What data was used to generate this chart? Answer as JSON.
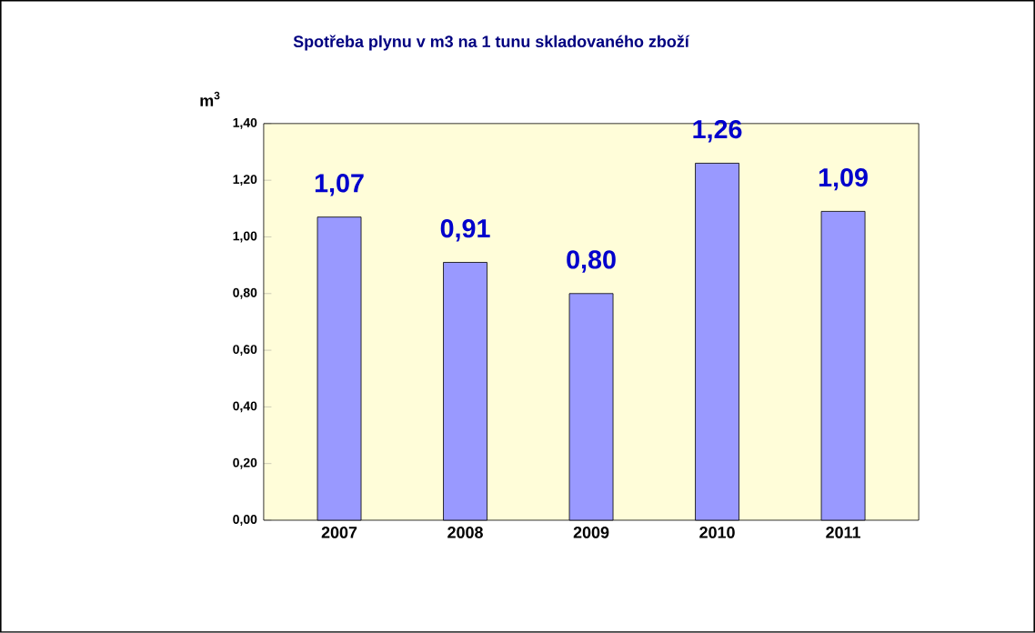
{
  "chart_data": {
    "type": "bar",
    "title": "Spotřeba plynu v m3 na 1 tunu skladovaného zboží",
    "ylabel": "m$^{3}$",
    "categories": [
      "2007",
      "2008",
      "2009",
      "2010",
      "2011"
    ],
    "values": [
      1.07,
      0.91,
      0.8,
      1.26,
      1.09
    ],
    "value_labels": [
      "1,07",
      "0,91",
      "0,80",
      "1,26",
      "1,09"
    ],
    "color": "#9999ff",
    "ylim": [
      0,
      1.4
    ],
    "yticks": [
      {
        "value": 0,
        "label": "0,00"
      },
      {
        "value": 0.2,
        "label": "0,20"
      },
      {
        "value": 0.4,
        "label": "0,40"
      },
      {
        "value": 0.6,
        "label": "0,60"
      },
      {
        "value": 0.8,
        "label": "0,80"
      },
      {
        "value": 1.0,
        "label": "1,00"
      },
      {
        "value": 1.2,
        "label": "1,20"
      },
      {
        "value": 1.4,
        "label": "1,40"
      }
    ],
    "grid": false
  }
}
